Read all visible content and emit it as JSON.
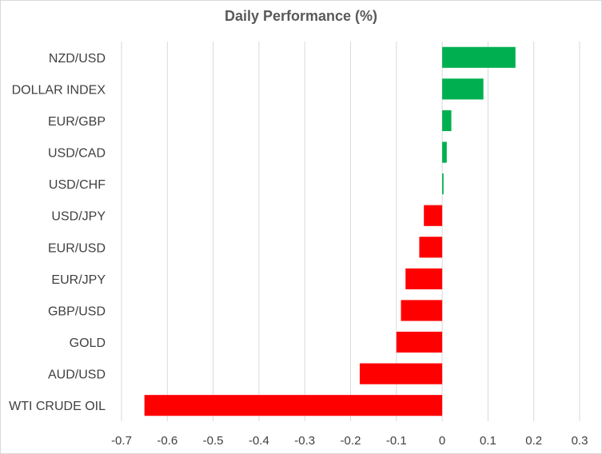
{
  "chart_data": {
    "type": "bar",
    "orientation": "horizontal",
    "title": "Daily Performance (%)",
    "xlabel": "",
    "ylabel": "",
    "categories": [
      "NZD/USD",
      "DOLLAR INDEX",
      "EUR/GBP",
      "USD/CAD",
      "USD/CHF",
      "USD/JPY",
      "EUR/USD",
      "EUR/JPY",
      "GBP/USD",
      "GOLD",
      "AUD/USD",
      "WTI CRUDE OIL"
    ],
    "values": [
      0.16,
      0.09,
      0.02,
      0.01,
      0.003,
      -0.04,
      -0.05,
      -0.08,
      -0.09,
      -0.1,
      -0.18,
      -0.65
    ],
    "xlim": [
      -0.7,
      0.3
    ],
    "xticks": [
      "-0.7",
      "-0.6",
      "-0.5",
      "-0.4",
      "-0.3",
      "-0.2",
      "-0.1",
      "0",
      "0.1",
      "0.2",
      "0.3"
    ],
    "grid": true,
    "legend": "none",
    "colors": {
      "positive": "#00b050",
      "negative": "#ff0000",
      "grid": "#d9d9d9"
    }
  }
}
